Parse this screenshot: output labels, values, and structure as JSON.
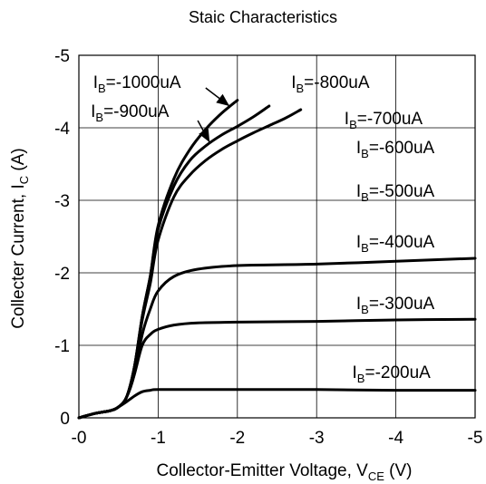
{
  "chart_data": {
    "type": "line",
    "title": "Staic Characteristics",
    "xlabel": {
      "main": "Collector-Emitter Voltage, V",
      "sub": "CE",
      "unit": " (V)"
    },
    "ylabel": {
      "main": "Collecter Current, I",
      "sub": "C",
      "unit": " (A)"
    },
    "xlim": [
      0,
      -5
    ],
    "ylim": [
      0,
      -5
    ],
    "x_ticks": [
      0,
      -1,
      -2,
      -3,
      -4,
      -5
    ],
    "y_ticks": [
      0,
      -1,
      -2,
      -3,
      -4,
      -5
    ],
    "x_tick_labels": [
      "-0",
      "-1",
      "-2",
      "-3",
      "-4",
      "-5"
    ],
    "y_tick_labels": [
      "0",
      "-1",
      "-2",
      "-3",
      "-4",
      "-5"
    ],
    "grid": true,
    "series": [
      {
        "name": "-1000uA",
        "x": [
          0,
          -0.2,
          -0.4,
          -0.5,
          -0.6,
          -0.7,
          -0.8,
          -0.9,
          -1.0,
          -1.2,
          -1.4,
          -1.6,
          -1.8,
          -2.0
        ],
        "y": [
          0,
          -0.06,
          -0.1,
          -0.15,
          -0.28,
          -0.7,
          -1.4,
          -1.95,
          -2.65,
          -3.3,
          -3.7,
          -3.98,
          -4.2,
          -4.38
        ]
      },
      {
        "name": "-900uA",
        "x": [
          0,
          -0.2,
          -0.4,
          -0.5,
          -0.6,
          -0.7,
          -0.8,
          -0.9,
          -1.0,
          -1.2,
          -1.4,
          -1.6,
          -1.8,
          -2.0,
          -2.2,
          -2.4
        ],
        "y": [
          0,
          -0.06,
          -0.1,
          -0.15,
          -0.28,
          -0.7,
          -1.4,
          -1.95,
          -2.6,
          -3.2,
          -3.55,
          -3.75,
          -3.9,
          -4.02,
          -4.15,
          -4.3
        ]
      },
      {
        "name": "-800uA",
        "x": [
          0,
          -0.2,
          -0.4,
          -0.5,
          -0.6,
          -0.7,
          -0.8,
          -0.9,
          -1.0,
          -1.2,
          -1.4,
          -1.6,
          -1.8,
          -2.0,
          -2.2,
          -2.4,
          -2.6,
          -2.8
        ],
        "y": [
          0,
          -0.06,
          -0.1,
          -0.15,
          -0.28,
          -0.7,
          -1.35,
          -1.85,
          -2.45,
          -3.05,
          -3.35,
          -3.55,
          -3.7,
          -3.82,
          -3.93,
          -4.03,
          -4.13,
          -4.25
        ]
      },
      {
        "name": "-400uA",
        "x": [
          0,
          -0.2,
          -0.4,
          -0.5,
          -0.6,
          -0.7,
          -0.8,
          -0.9,
          -1.0,
          -1.2,
          -1.5,
          -2.0,
          -3.0,
          -4.0,
          -5.0
        ],
        "y": [
          0,
          -0.06,
          -0.1,
          -0.15,
          -0.28,
          -0.6,
          -1.15,
          -1.5,
          -1.75,
          -1.95,
          -2.05,
          -2.1,
          -2.12,
          -2.16,
          -2.2
        ]
      },
      {
        "name": "-300uA",
        "x": [
          0,
          -0.2,
          -0.4,
          -0.5,
          -0.6,
          -0.7,
          -0.8,
          -0.9,
          -1.0,
          -1.2,
          -1.5,
          -2.0,
          -3.0,
          -4.0,
          -5.0
        ],
        "y": [
          0,
          -0.06,
          -0.1,
          -0.15,
          -0.28,
          -0.6,
          -1.0,
          -1.15,
          -1.22,
          -1.28,
          -1.31,
          -1.32,
          -1.33,
          -1.35,
          -1.36
        ]
      },
      {
        "name": "-200uA",
        "x": [
          0,
          -0.2,
          -0.4,
          -0.5,
          -0.6,
          -0.7,
          -0.8,
          -0.9,
          -1.0,
          -1.5,
          -2.0,
          -3.0,
          -4.0,
          -5.0
        ],
        "y": [
          0,
          -0.06,
          -0.1,
          -0.15,
          -0.22,
          -0.3,
          -0.36,
          -0.38,
          -0.39,
          -0.39,
          -0.39,
          -0.39,
          -0.38,
          -0.38
        ]
      }
    ],
    "labels": [
      {
        "prefix": "I",
        "sub": "B",
        "text": "=-1000uA",
        "x": -0.18,
        "y": -4.55
      },
      {
        "prefix": "I",
        "sub": "B",
        "text": "=-900uA",
        "x": -0.15,
        "y": -4.15
      },
      {
        "prefix": "I",
        "sub": "B",
        "text": "=-800uA",
        "x": -2.68,
        "y": -4.55
      },
      {
        "prefix": "I",
        "sub": "B",
        "text": "=-700uA",
        "x": -3.35,
        "y": -4.05
      },
      {
        "prefix": "I",
        "sub": "B",
        "text": "=-600uA",
        "x": -3.5,
        "y": -3.65
      },
      {
        "prefix": "I",
        "sub": "B",
        "text": "=-500uA",
        "x": -3.5,
        "y": -3.05
      },
      {
        "prefix": "I",
        "sub": "B",
        "text": "=-400uA",
        "x": -3.5,
        "y": -2.35
      },
      {
        "prefix": "I",
        "sub": "B",
        "text": "=-300uA",
        "x": -3.5,
        "y": -1.5
      },
      {
        "prefix": "I",
        "sub": "B",
        "text": "=-200uA",
        "x": -3.45,
        "y": -0.55
      }
    ],
    "arrows": [
      {
        "from": [
          -1.6,
          -4.55
        ],
        "to": [
          -1.9,
          -4.3
        ]
      },
      {
        "from": [
          -1.5,
          -4.1
        ],
        "to": [
          -1.65,
          -3.8
        ]
      }
    ]
  }
}
